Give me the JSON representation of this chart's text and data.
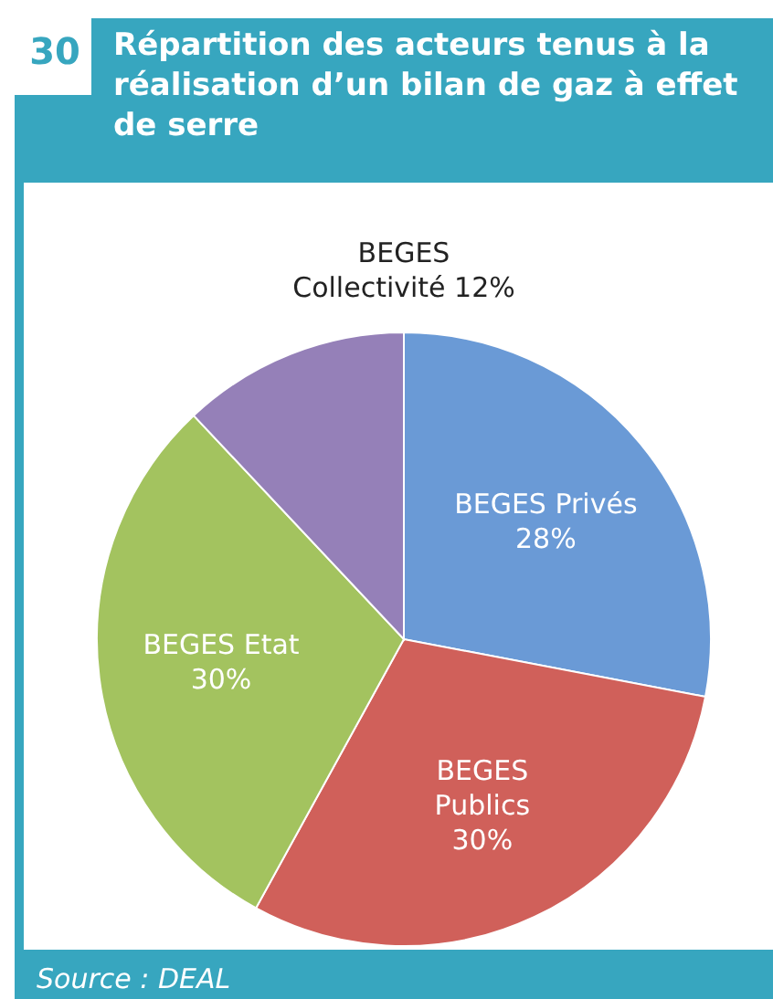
{
  "chart_data": {
    "type": "pie",
    "title": "Répartition des acteurs tenus à la réalisation d’un bilan de gaz à effet de serre",
    "annotations": [
      "30",
      "Source : DEAL"
    ],
    "categories": [
      "BEGES Privés",
      "BEGES Publics",
      "BEGES Etat",
      "BEGES Collectivité"
    ],
    "values": [
      28,
      30,
      30,
      12
    ],
    "value_labels": [
      "28%",
      "30%",
      "30%",
      "12%"
    ],
    "colors": [
      "#6a9ad6",
      "#d0605a",
      "#a3c35f",
      "#9580b8"
    ],
    "legend": false
  }
}
